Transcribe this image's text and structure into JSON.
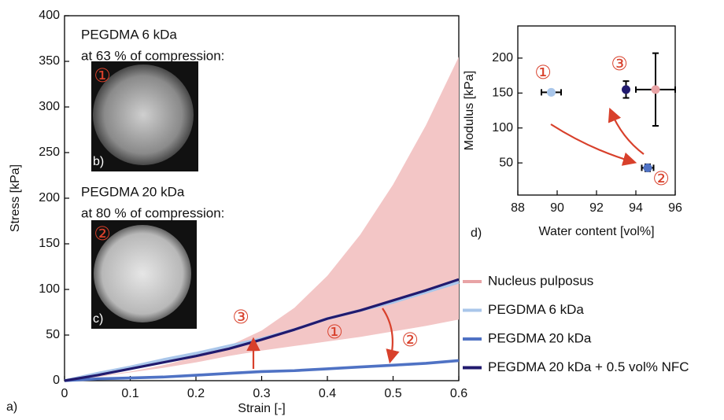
{
  "chart_data": [
    {
      "type": "line",
      "x_label": "Strain [-]",
      "y_label": "Stress [kPa]",
      "panel_label": "a)",
      "xlim": [
        0,
        0.6
      ],
      "ylim": [
        0,
        400
      ],
      "xticks": [
        0,
        0.1,
        0.2,
        0.3,
        0.4,
        0.5,
        0.6
      ],
      "yticks": [
        0,
        50,
        100,
        150,
        200,
        250,
        300,
        350,
        400
      ],
      "x": [
        0,
        0.05,
        0.1,
        0.15,
        0.2,
        0.25,
        0.3,
        0.35,
        0.4,
        0.45,
        0.5,
        0.55,
        0.6
      ],
      "series": [
        {
          "name": "Nucleus pulposus",
          "color": "#e8a3a5",
          "fill": "#f3c6c6",
          "upper": [
            0,
            5,
            10,
            17,
            26,
            38,
            55,
            80,
            115,
            160,
            215,
            280,
            355
          ],
          "lower": [
            0,
            4,
            9,
            14,
            20,
            27,
            33,
            38,
            43,
            48,
            54,
            60,
            67
          ]
        },
        {
          "name": "PEGDMA 6 kDa",
          "color": "#a9c6ea",
          "values": [
            0,
            8,
            15,
            23,
            30,
            38,
            46,
            56,
            68,
            77,
            86,
            97,
            108
          ]
        },
        {
          "name": "PEGDMA 20 kDa",
          "color": "#4f72c4",
          "values": [
            0,
            2,
            3,
            4,
            6,
            8,
            10,
            11,
            13,
            15,
            17,
            19,
            22
          ]
        },
        {
          "name": "PEGDMA 20 kDa + 0.5 vol% NFC",
          "color": "#211a6e",
          "values": [
            0,
            6,
            13,
            20,
            27,
            35,
            45,
            56,
            68,
            77,
            88,
            99,
            111
          ]
        }
      ],
      "insets": [
        {
          "caption": [
            "PEGDMA 6 kDa",
            "at 63 % of compression:"
          ],
          "label": "b)",
          "marker": "①"
        },
        {
          "caption": [
            "PEGDMA 20 kDa",
            "at 80 % of compression:"
          ],
          "label": "c)",
          "marker": "②"
        }
      ],
      "annotations": [
        "③",
        "①",
        "②"
      ]
    },
    {
      "type": "scatter",
      "x_label": "Water content [vol%]",
      "y_label": "Modulus [kPa]",
      "panel_label": "d)",
      "xlim": [
        88,
        96
      ],
      "ylim": [
        4,
        246
      ],
      "xticks": [
        88,
        90,
        92,
        94,
        96
      ],
      "yticks": [
        50,
        100,
        150,
        200
      ],
      "series": [
        {
          "color": "#a9c6ea",
          "x": [
            89.7
          ],
          "values": [
            151
          ],
          "xerr": [
            0.5
          ],
          "yerr": [
            3
          ]
        },
        {
          "color": "#4f72c4",
          "x": [
            94.6
          ],
          "values": [
            43
          ],
          "xerr": [
            0.3
          ],
          "yerr": [
            5
          ]
        },
        {
          "color": "#211a6e",
          "x": [
            93.5
          ],
          "values": [
            155
          ],
          "xerr": [
            0.1
          ],
          "yerr": [
            12
          ]
        },
        {
          "color": "#e8a3a5",
          "x": [
            95
          ],
          "values": [
            155
          ],
          "xerr": [
            1
          ],
          "yerr": [
            52
          ]
        }
      ],
      "annotations": [
        "①",
        "③",
        "②"
      ]
    }
  ]
}
